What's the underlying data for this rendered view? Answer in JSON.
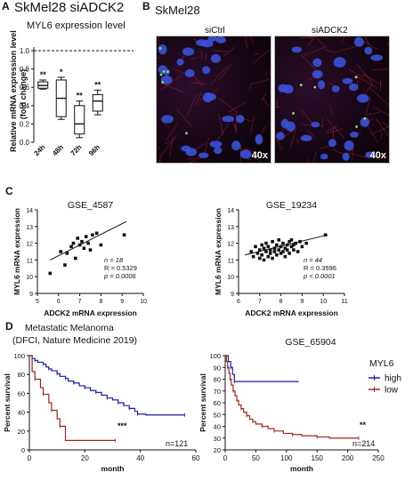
{
  "panel_a": {
    "letter": "A",
    "title": "SkMel28 siADCK2",
    "subtitle": "MYL6 expression level",
    "ylabel_line1": "Relative mRNA expression level",
    "ylabel_line2": "(fold change)"
  },
  "panel_b": {
    "letter": "B",
    "title": "SkMel28",
    "left_label": "siCtrl",
    "right_label": "siADCK2",
    "magnification": "40x"
  },
  "panel_c": {
    "letter": "C",
    "left_stats": {
      "n": "n = 18",
      "r": "R = 0.5329",
      "p": "p = 0.0006"
    },
    "right_stats": {
      "n": "n = 44",
      "r": "R = 0.3596",
      "p": "p < 0.0001"
    }
  },
  "panel_d": {
    "letter": "D",
    "left_title_line1": "Metastatic Melanoma",
    "left_title_line2": "(DFCI, Nature Medicine 2019)",
    "left_n": "n=121",
    "right_n": "n=214",
    "legend_title": "MYL6"
  },
  "chart_data": [
    {
      "type": "box",
      "categories": [
        "24h",
        "48h",
        "72h",
        "96h"
      ],
      "ylim": [
        0,
        1.0
      ],
      "yticks": [
        "0.0",
        "0.2",
        "0.4",
        "0.6",
        "0.8",
        "1.0"
      ],
      "reference_line": 1.0,
      "boxes": [
        {
          "min": 0.58,
          "q1": 0.59,
          "median": 0.62,
          "q3": 0.66,
          "max": 0.68,
          "sig": "**"
        },
        {
          "min": 0.25,
          "q1": 0.28,
          "median": 0.48,
          "q3": 0.68,
          "max": 0.71,
          "sig": "*"
        },
        {
          "min": 0.05,
          "q1": 0.09,
          "median": 0.2,
          "q3": 0.4,
          "max": 0.45,
          "sig": "**"
        },
        {
          "min": 0.3,
          "q1": 0.34,
          "median": 0.45,
          "q3": 0.52,
          "max": 0.57,
          "sig": "**"
        }
      ]
    },
    {
      "type": "scatter",
      "title": "GSE_4587",
      "xlabel": "ADCK2 mRNA expression",
      "ylabel": "MYL6 mRNA expression",
      "xlim": [
        5,
        10
      ],
      "ylim": [
        9,
        14
      ],
      "xticks": [
        "5",
        "6",
        "7",
        "8",
        "9",
        "10"
      ],
      "yticks": [
        "9",
        "10",
        "11",
        "12",
        "13",
        "14"
      ],
      "points": [
        [
          5.6,
          10.2
        ],
        [
          6.1,
          11.5
        ],
        [
          6.3,
          10.7
        ],
        [
          6.4,
          11.4
        ],
        [
          6.6,
          11.8
        ],
        [
          6.7,
          12.0
        ],
        [
          6.8,
          11.1
        ],
        [
          6.9,
          12.3
        ],
        [
          7.0,
          11.9
        ],
        [
          7.1,
          12.1
        ],
        [
          7.2,
          11.7
        ],
        [
          7.3,
          12.4
        ],
        [
          7.4,
          12.0
        ],
        [
          7.5,
          11.6
        ],
        [
          7.6,
          12.5
        ],
        [
          7.8,
          12.6
        ],
        [
          8.0,
          11.9
        ],
        [
          9.1,
          12.5
        ]
      ],
      "fit": [
        [
          5.6,
          11.0
        ],
        [
          9.2,
          13.3
        ]
      ]
    },
    {
      "type": "scatter",
      "title": "GSE_19234",
      "xlabel": "ADCK2 mRNA expression",
      "ylabel": "MYL6 mRNA expression",
      "xlim": [
        6,
        11
      ],
      "ylim": [
        9,
        14
      ],
      "xticks": [
        "6",
        "7",
        "8",
        "9",
        "10",
        "11"
      ],
      "yticks": [
        "9",
        "10",
        "11",
        "12",
        "13",
        "14"
      ],
      "points": [
        [
          6.6,
          11.5
        ],
        [
          6.7,
          11.2
        ],
        [
          6.8,
          11.8
        ],
        [
          6.9,
          11.4
        ],
        [
          7.0,
          11.6
        ],
        [
          7.0,
          11.1
        ],
        [
          7.1,
          11.9
        ],
        [
          7.1,
          11.3
        ],
        [
          7.2,
          11.7
        ],
        [
          7.2,
          11.0
        ],
        [
          7.3,
          11.5
        ],
        [
          7.3,
          12.0
        ],
        [
          7.4,
          11.2
        ],
        [
          7.4,
          11.8
        ],
        [
          7.5,
          11.6
        ],
        [
          7.5,
          11.4
        ],
        [
          7.6,
          11.1
        ],
        [
          7.6,
          12.1
        ],
        [
          7.7,
          11.7
        ],
        [
          7.7,
          11.5
        ],
        [
          7.8,
          11.9
        ],
        [
          7.8,
          11.3
        ],
        [
          7.9,
          11.6
        ],
        [
          7.9,
          12.2
        ],
        [
          8.0,
          11.4
        ],
        [
          8.0,
          11.8
        ],
        [
          8.1,
          11.5
        ],
        [
          8.1,
          12.0
        ],
        [
          8.2,
          11.7
        ],
        [
          8.2,
          11.2
        ],
        [
          8.3,
          11.9
        ],
        [
          8.3,
          11.6
        ],
        [
          8.4,
          12.1
        ],
        [
          8.4,
          11.4
        ],
        [
          8.5,
          11.8
        ],
        [
          8.5,
          12.2
        ],
        [
          8.6,
          11.6
        ],
        [
          8.6,
          11.9
        ],
        [
          8.7,
          12.0
        ],
        [
          8.8,
          11.5
        ],
        [
          8.9,
          12.1
        ],
        [
          9.0,
          11.8
        ],
        [
          9.2,
          12.0
        ],
        [
          10.1,
          12.5
        ]
      ],
      "fit": [
        [
          6.3,
          11.3
        ],
        [
          10.2,
          12.5
        ]
      ]
    },
    {
      "type": "survival",
      "xlabel": "month",
      "ylabel": "Percent survival",
      "xlim": [
        0,
        60
      ],
      "ylim": [
        0,
        100
      ],
      "xticks": [
        "0",
        "20",
        "40",
        "60"
      ],
      "yticks": [
        "0",
        "20",
        "40",
        "60",
        "80",
        "100"
      ],
      "significance": "***",
      "series": [
        {
          "name": "high",
          "color": "#1b1bb0",
          "steps": [
            [
              0,
              100
            ],
            [
              1,
              97
            ],
            [
              2,
              95
            ],
            [
              3,
              93
            ],
            [
              5,
              91
            ],
            [
              6,
              88
            ],
            [
              7,
              86
            ],
            [
              8,
              84
            ],
            [
              10,
              81
            ],
            [
              11,
              78
            ],
            [
              13,
              76
            ],
            [
              14,
              73
            ],
            [
              16,
              71
            ],
            [
              18,
              68
            ],
            [
              20,
              66
            ],
            [
              22,
              63
            ],
            [
              24,
              61
            ],
            [
              26,
              58
            ],
            [
              28,
              55
            ],
            [
              30,
              53
            ],
            [
              32,
              50
            ],
            [
              34,
              47
            ],
            [
              36,
              44
            ],
            [
              38,
              41
            ],
            [
              39,
              38
            ],
            [
              42,
              37
            ],
            [
              56,
              37
            ]
          ]
        },
        {
          "name": "low",
          "color": "#9b2a18",
          "steps": [
            [
              0,
              100
            ],
            [
              1,
              83
            ],
            [
              2,
              75
            ],
            [
              4,
              66
            ],
            [
              5,
              59
            ],
            [
              7,
              50
            ],
            [
              8,
              42
            ],
            [
              10,
              33
            ],
            [
              11,
              25
            ],
            [
              13,
              10
            ],
            [
              31,
              10
            ]
          ]
        }
      ]
    },
    {
      "type": "survival",
      "title": "GSE_65904",
      "xlabel": "month",
      "ylabel": "Percent survival",
      "xlim": [
        0,
        250
      ],
      "ylim": [
        20,
        100
      ],
      "xticks": [
        "0",
        "50",
        "100",
        "150",
        "200",
        "250"
      ],
      "yticks": [
        "20",
        "30",
        "40",
        "50",
        "60",
        "70",
        "80",
        "90",
        "100"
      ],
      "significance": "**",
      "series": [
        {
          "name": "high",
          "color": "#1b1bb0",
          "steps": [
            [
              0,
              100
            ],
            [
              5,
              95
            ],
            [
              9,
              90
            ],
            [
              12,
              84
            ],
            [
              15,
              78
            ],
            [
              120,
              78
            ]
          ]
        },
        {
          "name": "low",
          "color": "#9b2a18",
          "steps": [
            [
              0,
              100
            ],
            [
              2,
              95
            ],
            [
              4,
              90
            ],
            [
              6,
              85
            ],
            [
              8,
              80
            ],
            [
              10,
              75
            ],
            [
              13,
              70
            ],
            [
              16,
              66
            ],
            [
              19,
              62
            ],
            [
              22,
              58
            ],
            [
              26,
              55
            ],
            [
              30,
              52
            ],
            [
              35,
              49
            ],
            [
              40,
              46
            ],
            [
              45,
              44
            ],
            [
              50,
              42
            ],
            [
              60,
              40
            ],
            [
              70,
              38
            ],
            [
              80,
              36
            ],
            [
              95,
              34
            ],
            [
              110,
              33
            ],
            [
              125,
              32
            ],
            [
              150,
              31
            ],
            [
              170,
              30
            ],
            [
              218,
              30
            ]
          ]
        }
      ]
    }
  ]
}
